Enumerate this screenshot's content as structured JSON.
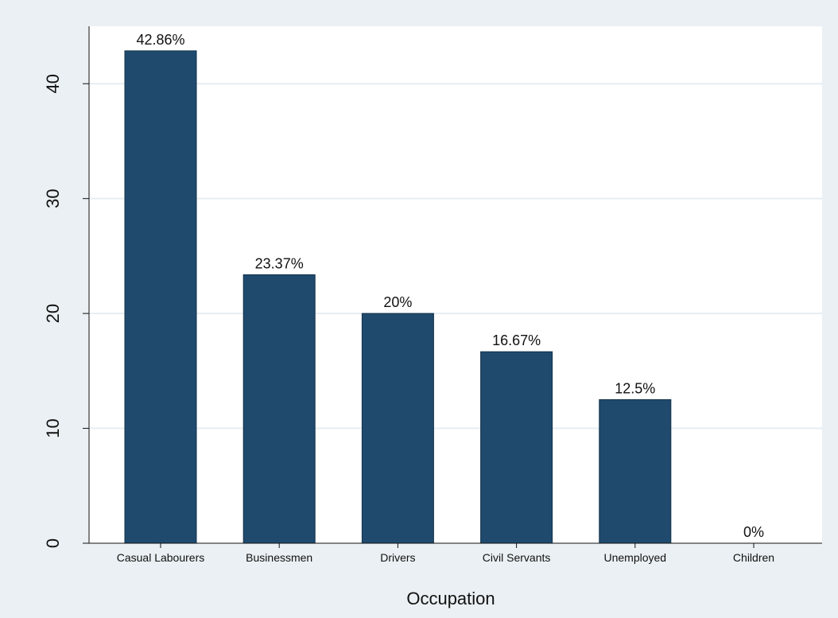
{
  "chart_data": {
    "type": "bar",
    "title": "",
    "xlabel": "Occupation",
    "ylabel": "",
    "categories": [
      "Casual Labourers",
      "Businessmen",
      "Drivers",
      "Civil Servants",
      "Unemployed",
      "Children"
    ],
    "values": [
      42.86,
      23.37,
      20,
      16.67,
      12.5,
      0
    ],
    "data_labels": [
      "42.86%",
      "23.37%",
      "20%",
      "16.67%",
      "12.5%",
      "0%"
    ],
    "y_ticks": [
      0,
      10,
      20,
      30,
      40
    ],
    "y_tick_labels": [
      "0",
      "10",
      "20",
      "30",
      "40"
    ],
    "ylim": [
      0,
      45
    ],
    "grid": true,
    "legend": "none",
    "colors": {
      "bar": "#1f4a6e",
      "plot_background": "#ffffff",
      "outer_background": "#eaf0f3",
      "gridline": "#e6eef2"
    }
  }
}
